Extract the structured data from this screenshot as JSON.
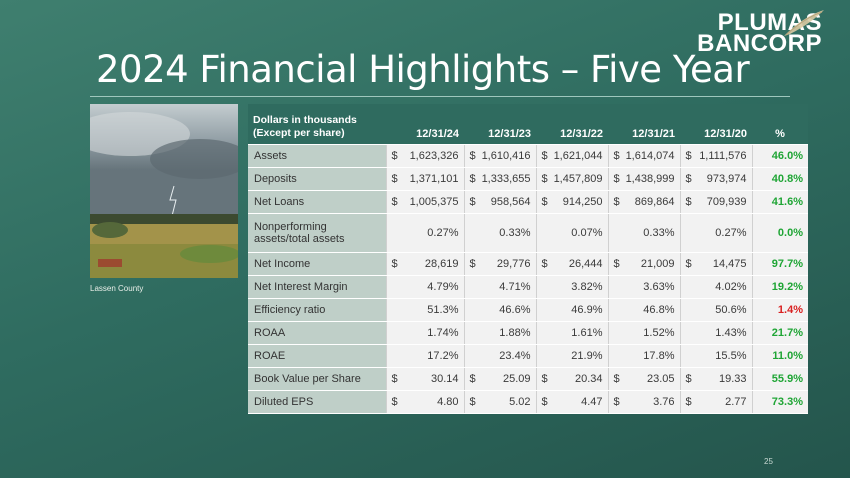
{
  "title": "2024 Financial Highlights – Five Year",
  "logo": {
    "line1": "PLUMAS",
    "line2": "BANCORP"
  },
  "photo_caption": "Lassen County",
  "page_number": "25",
  "colors": {
    "positive": "#1fa535",
    "negative": "#d92020",
    "header": "#2f6b5f",
    "label_bg": "#bfcfc8"
  },
  "table": {
    "header_line1": "Dollars in thousands",
    "header_line2": "(Except per share)",
    "columns": [
      "12/31/24",
      "12/31/23",
      "12/31/22",
      "12/31/21",
      "12/31/20",
      "%"
    ],
    "rows": [
      {
        "label": "Assets",
        "cells": [
          [
            "$",
            "1,623,326"
          ],
          [
            "$",
            "1,610,416"
          ],
          [
            "$",
            "1,621,044"
          ],
          [
            "$",
            "1,614,074"
          ],
          [
            "$",
            "1,111,576"
          ]
        ],
        "pct": "46.0%",
        "sign": "pos"
      },
      {
        "label": "Deposits",
        "cells": [
          [
            "$",
            "1,371,101"
          ],
          [
            "$",
            "1,333,655"
          ],
          [
            "$",
            "1,457,809"
          ],
          [
            "$",
            "1,438,999"
          ],
          [
            "$",
            "973,974"
          ]
        ],
        "pct": "40.8%",
        "sign": "pos"
      },
      {
        "label": "Net Loans",
        "cells": [
          [
            "$",
            "1,005,375"
          ],
          [
            "$",
            "958,564"
          ],
          [
            "$",
            "914,250"
          ],
          [
            "$",
            "869,864"
          ],
          [
            "$",
            "709,939"
          ]
        ],
        "pct": "41.6%",
        "sign": "pos"
      },
      {
        "label": "Nonperforming assets/total assets",
        "cells": [
          [
            "",
            "0.27%"
          ],
          [
            "",
            "0.33%"
          ],
          [
            "",
            "0.07%"
          ],
          [
            "",
            "0.33%"
          ],
          [
            "",
            "0.27%"
          ]
        ],
        "pct": "0.0%",
        "sign": "pos",
        "tall": true
      },
      {
        "label": "Net Income",
        "cells": [
          [
            "$",
            "28,619"
          ],
          [
            "$",
            "29,776"
          ],
          [
            "$",
            "26,444"
          ],
          [
            "$",
            "21,009"
          ],
          [
            "$",
            "14,475"
          ]
        ],
        "pct": "97.7%",
        "sign": "pos"
      },
      {
        "label": "Net Interest Margin",
        "cells": [
          [
            "",
            "4.79%"
          ],
          [
            "",
            "4.71%"
          ],
          [
            "",
            "3.82%"
          ],
          [
            "",
            "3.63%"
          ],
          [
            "",
            "4.02%"
          ]
        ],
        "pct": "19.2%",
        "sign": "pos"
      },
      {
        "label": "Efficiency ratio",
        "cells": [
          [
            "",
            "51.3%"
          ],
          [
            "",
            "46.6%"
          ],
          [
            "",
            "46.9%"
          ],
          [
            "",
            "46.8%"
          ],
          [
            "",
            "50.6%"
          ]
        ],
        "pct": "1.4%",
        "sign": "neg"
      },
      {
        "label": "ROAA",
        "cells": [
          [
            "",
            "1.74%"
          ],
          [
            "",
            "1.88%"
          ],
          [
            "",
            "1.61%"
          ],
          [
            "",
            "1.52%"
          ],
          [
            "",
            "1.43%"
          ]
        ],
        "pct": "21.7%",
        "sign": "pos"
      },
      {
        "label": "ROAE",
        "cells": [
          [
            "",
            "17.2%"
          ],
          [
            "",
            "23.4%"
          ],
          [
            "",
            "21.9%"
          ],
          [
            "",
            "17.8%"
          ],
          [
            "",
            "15.5%"
          ]
        ],
        "pct": "11.0%",
        "sign": "pos"
      },
      {
        "label": "Book Value per Share",
        "cells": [
          [
            "$",
            "30.14"
          ],
          [
            "$",
            "25.09"
          ],
          [
            "$",
            "20.34"
          ],
          [
            "$",
            "23.05"
          ],
          [
            "$",
            "19.33"
          ]
        ],
        "pct": "55.9%",
        "sign": "pos"
      },
      {
        "label": "Diluted EPS",
        "cells": [
          [
            "$",
            "4.80"
          ],
          [
            "$",
            "5.02"
          ],
          [
            "$",
            "4.47"
          ],
          [
            "$",
            "3.76"
          ],
          [
            "$",
            "2.77"
          ]
        ],
        "pct": "73.3%",
        "sign": "pos"
      }
    ]
  }
}
